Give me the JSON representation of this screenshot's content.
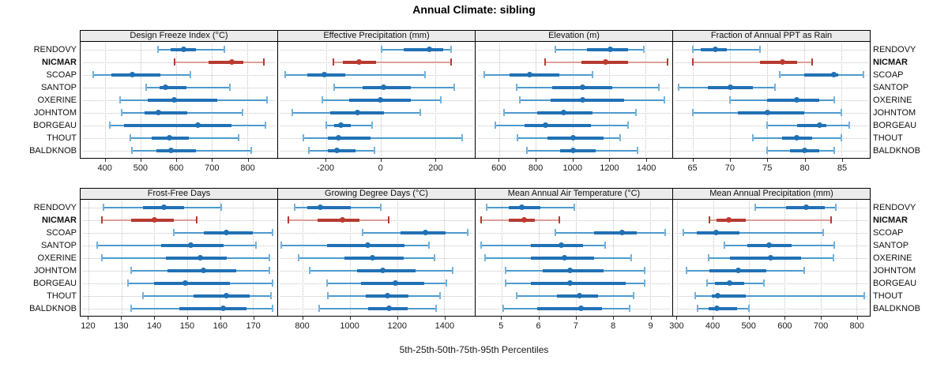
{
  "title": "Annual Climate: sibling",
  "caption": "5th-25th-50th-75th-95th Percentiles",
  "colors": {
    "blue_line": "#4E9ACD",
    "blue_cap": "#74B2DB",
    "blue_bar": "#2171B5",
    "blue_dot": "#2171B5",
    "red_line": "#DCA09A",
    "red_cap": "#B63A31",
    "red_bar": "#B63A31",
    "red_dot": "#C03A2E",
    "strip_bg": "#EBEBEB",
    "grid": "#C3C3C3",
    "axis_text": "#1A1A1A"
  },
  "chart_data": {
    "type": "dot-interval",
    "percentiles": [
      5,
      25,
      50,
      75,
      95
    ],
    "stations": [
      "RENDOVY",
      "NICMAR",
      "SCOAP",
      "SANTOP",
      "OXERINE",
      "JOHNTOM",
      "BORGEAU",
      "THOUT",
      "BALDKNOB"
    ],
    "highlighted_station": "NICMAR",
    "panels": [
      {
        "title": "Design Freeze Index (°C)",
        "band": 1,
        "col": 1,
        "xdomain": [
          330,
          885
        ],
        "ticks": [
          400,
          500,
          600,
          700,
          800
        ],
        "series": [
          {
            "name": "RENDOVY",
            "values": [
              548,
              585,
              620,
              655,
              735
            ]
          },
          {
            "name": "NICMAR",
            "values": [
              595,
              690,
              757,
              790,
              848
            ]
          },
          {
            "name": "SCOAP",
            "values": [
              366,
              416,
              476,
              556,
              640
            ]
          },
          {
            "name": "SANTOP",
            "values": [
              515,
              552,
              569,
              629,
              752
            ]
          },
          {
            "name": "OXERINE",
            "values": [
              442,
              520,
              595,
              715,
              855
            ]
          },
          {
            "name": "JOHNTOM",
            "values": [
              445,
              510,
              550,
              630,
              788
            ]
          },
          {
            "name": "BORGEAU",
            "values": [
              412,
              452,
              660,
              755,
              852
            ]
          },
          {
            "name": "THOUT",
            "values": [
              470,
              530,
              580,
              635,
              775
            ]
          },
          {
            "name": "BALDKNOB",
            "values": [
              475,
              545,
              585,
              655,
              812
            ]
          }
        ]
      },
      {
        "title": "Effective Precipitation (mm)",
        "band": 1,
        "col": 2,
        "xdomain": [
          -375,
          345
        ],
        "ticks": [
          -200,
          0,
          200
        ],
        "series": [
          {
            "name": "RENDOVY",
            "values": [
              5,
              85,
              180,
              230,
              257
            ]
          },
          {
            "name": "NICMAR",
            "values": [
              -173,
              -137,
              -80,
              -17,
              257
            ]
          },
          {
            "name": "SCOAP",
            "values": [
              -348,
              -267,
              -205,
              -129,
              162
            ]
          },
          {
            "name": "SANTOP",
            "values": [
              -170,
              -66,
              10,
              112,
              271
            ]
          },
          {
            "name": "OXERINE",
            "values": [
              -214,
              -115,
              0,
              112,
              220
            ]
          },
          {
            "name": "JOHNTOM",
            "values": [
              -323,
              -185,
              -83,
              12,
              146
            ]
          },
          {
            "name": "BORGEAU",
            "values": [
              -200,
              -170,
              -146,
              -110,
              -32
            ]
          },
          {
            "name": "THOUT",
            "values": [
              -282,
              -192,
              -155,
              -37,
              298
            ]
          },
          {
            "name": "BALDKNOB",
            "values": [
              -262,
              -192,
              -160,
              -92,
              -22
            ]
          }
        ]
      },
      {
        "title": "Elevation (m)",
        "band": 1,
        "col": 3,
        "xdomain": [
          470,
          1545
        ],
        "ticks": [
          600,
          800,
          1000,
          1200,
          1400
        ],
        "series": [
          {
            "name": "RENDOVY",
            "values": [
              905,
              1080,
              1205,
              1305,
              1390
            ]
          },
          {
            "name": "NICMAR",
            "values": [
              850,
              1050,
              1180,
              1305,
              1520
            ]
          },
          {
            "name": "SCOAP",
            "values": [
              517,
              655,
              767,
              928,
              1110
            ]
          },
          {
            "name": "SANTOP",
            "values": [
              695,
              888,
              1055,
              1215,
              1473
            ]
          },
          {
            "name": "OXERINE",
            "values": [
              710,
              880,
              1055,
              1283,
              1503
            ]
          },
          {
            "name": "JOHNTOM",
            "values": [
              625,
              805,
              950,
              1110,
              1345
            ]
          },
          {
            "name": "BORGEAU",
            "values": [
              577,
              736,
              850,
              1100,
              1303
            ]
          },
          {
            "name": "THOUT",
            "values": [
              700,
              865,
              1003,
              1170,
              1260
            ]
          },
          {
            "name": "BALDKNOB",
            "values": [
              750,
              933,
              1005,
              1125,
              1353
            ]
          }
        ]
      },
      {
        "title": "Fraction of Annual PPT as Rain",
        "band": 1,
        "col": 4,
        "xdomain": [
          62.3,
          88.8
        ],
        "ticks": [
          65,
          70,
          75,
          80,
          85
        ],
        "series": [
          {
            "name": "RENDOVY",
            "values": [
              65,
              66,
              68,
              69.5,
              74
            ]
          },
          {
            "name": "NICMAR",
            "values": [
              65,
              74,
              77,
              79,
              81
            ]
          },
          {
            "name": "SCOAP",
            "values": [
              76.7,
              80,
              84,
              84.5,
              88
            ]
          },
          {
            "name": "SANTOP",
            "values": [
              63,
              67,
              70,
              73,
              76
            ]
          },
          {
            "name": "OXERINE",
            "values": [
              70,
              75,
              79,
              82,
              84
            ]
          },
          {
            "name": "JOHNTOM",
            "values": [
              65,
              71,
              75,
              80,
              85
            ]
          },
          {
            "name": "BORGEAU",
            "values": [
              75,
              79,
              82,
              83,
              86
            ]
          },
          {
            "name": "THOUT",
            "values": [
              73,
              77,
              79,
              81,
              85
            ]
          },
          {
            "name": "BALDKNOB",
            "values": [
              75,
              78,
              80,
              82,
              84
            ]
          }
        ]
      },
      {
        "title": "Frost-Free Days",
        "band": 2,
        "col": 1,
        "xdomain": [
          117.5,
          177.5
        ],
        "ticks": [
          120,
          130,
          140,
          150,
          160,
          170
        ],
        "series": [
          {
            "name": "RENDOVY",
            "values": [
              124.5,
              136.5,
              143,
              149,
              160.5
            ]
          },
          {
            "name": "NICMAR",
            "values": [
              124,
              133,
              140,
              146,
              153
            ]
          },
          {
            "name": "SCOAP",
            "values": [
              146,
              155,
              162,
              170,
              176
            ]
          },
          {
            "name": "SANTOP",
            "values": [
              122.5,
              142,
              151,
              161,
              171
            ]
          },
          {
            "name": "OXERINE",
            "values": [
              124,
              143.5,
              154,
              162,
              175
            ]
          },
          {
            "name": "JOHNTOM",
            "values": [
              133,
              144,
              155,
              165,
              175
            ]
          },
          {
            "name": "BORGEAU",
            "values": [
              132,
              140,
              149.5,
              163,
              176
            ]
          },
          {
            "name": "THOUT",
            "values": [
              136.5,
              152,
              162,
              169,
              175.5
            ]
          },
          {
            "name": "BALDKNOB",
            "values": [
              133,
              147.5,
              161,
              168,
              176
            ]
          }
        ]
      },
      {
        "title": "Growing Degree Days (°C)",
        "band": 2,
        "col": 2,
        "xdomain": [
          695,
          1530
        ],
        "ticks": [
          800,
          1000,
          1200,
          1400
        ],
        "series": [
          {
            "name": "RENDOVY",
            "values": [
              765,
              820,
              875,
              1005,
              1130
            ]
          },
          {
            "name": "NICMAR",
            "values": [
              737,
              862,
              968,
              1042,
              1165
            ]
          },
          {
            "name": "SCOAP",
            "values": [
              1054,
              1215,
              1320,
              1405,
              1500
            ]
          },
          {
            "name": "SANTOP",
            "values": [
              707,
              904,
              1074,
              1233,
              1334
            ]
          },
          {
            "name": "OXERINE",
            "values": [
              782,
              976,
              1095,
              1227,
              1358
            ]
          },
          {
            "name": "JOHNTOM",
            "values": [
              830,
              1030,
              1140,
              1280,
              1436
            ]
          },
          {
            "name": "BORGEAU",
            "values": [
              904,
              1048,
              1193,
              1316,
              1410
            ]
          },
          {
            "name": "THOUT",
            "values": [
              906,
              1066,
              1158,
              1248,
              1382
            ]
          },
          {
            "name": "BALDKNOB",
            "values": [
              870,
              1078,
              1165,
              1245,
              1367
            ]
          }
        ]
      },
      {
        "title": "Mean Annual Air Temperature (°C)",
        "band": 2,
        "col": 3,
        "xdomain": [
          4.3,
          9.6
        ],
        "ticks": [
          5,
          6,
          7,
          8,
          9
        ],
        "series": [
          {
            "name": "RENDOVY",
            "values": [
              4.6,
              5.2,
              5.55,
              6.05,
              6.95
            ]
          },
          {
            "name": "NICMAR",
            "values": [
              4.45,
              5.2,
              5.6,
              5.9,
              6.55
            ]
          },
          {
            "name": "SCOAP",
            "values": [
              6.45,
              7.5,
              8.25,
              8.65,
              9.4
            ]
          },
          {
            "name": "SANTOP",
            "values": [
              4.45,
              5.8,
              6.6,
              7.2,
              7.8
            ]
          },
          {
            "name": "OXERINE",
            "values": [
              4.55,
              5.8,
              6.7,
              7.5,
              8.5
            ]
          },
          {
            "name": "JOHNTOM",
            "values": [
              5.1,
              6.1,
              6.85,
              7.75,
              8.85
            ]
          },
          {
            "name": "BORGEAU",
            "values": [
              5.1,
              5.8,
              6.85,
              8.35,
              8.85
            ]
          },
          {
            "name": "THOUT",
            "values": [
              5.4,
              6.5,
              7.1,
              7.6,
              8.55
            ]
          },
          {
            "name": "BALDKNOB",
            "values": [
              5.05,
              5.95,
              7.15,
              7.7,
              8.45
            ]
          }
        ]
      },
      {
        "title": "Mean Annual Precipitation (mm)",
        "band": 2,
        "col": 4,
        "xdomain": [
          288,
          838
        ],
        "ticks": [
          300,
          400,
          500,
          600,
          700,
          800
        ],
        "series": [
          {
            "name": "RENDOVY",
            "values": [
              518,
              604,
              660,
              712,
              744
            ]
          },
          {
            "name": "NICMAR",
            "values": [
              390,
              410,
              443,
              492,
              730
            ]
          },
          {
            "name": "SCOAP",
            "values": [
              317,
              355,
              408,
              473,
              708
            ]
          },
          {
            "name": "SANTOP",
            "values": [
              431,
              495,
              556,
              620,
              739
            ]
          },
          {
            "name": "OXERINE",
            "values": [
              388,
              447,
              560,
              645,
              737
            ]
          },
          {
            "name": "JOHNTOM",
            "values": [
              325,
              390,
              470,
              548,
              654
            ]
          },
          {
            "name": "BORGEAU",
            "values": [
              384,
              405,
              447,
              486,
              542
            ]
          },
          {
            "name": "THOUT",
            "values": [
              350,
              396,
              413,
              491,
              822
            ]
          },
          {
            "name": "BALDKNOB",
            "values": [
              356,
              388,
              410,
              468,
              500
            ]
          }
        ]
      }
    ]
  }
}
